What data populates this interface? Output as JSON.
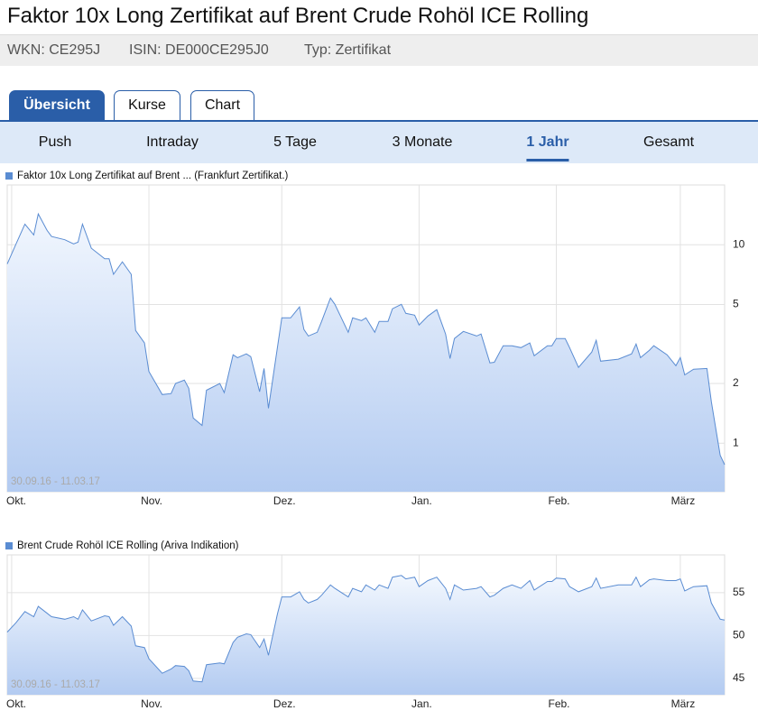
{
  "header": {
    "title": "Faktor 10x Long Zertifikat auf Brent Crude Rohöl ICE Rolling",
    "wkn": "WKN: CE295J",
    "isin": "ISIN: DE000CE295J0",
    "typ": "Typ: Zertifikat"
  },
  "tabs": [
    {
      "label": "Übersicht",
      "active": true
    },
    {
      "label": "Kurse",
      "active": false
    },
    {
      "label": "Chart",
      "active": false
    }
  ],
  "periods": [
    {
      "label": "Push",
      "active": false
    },
    {
      "label": "Intraday",
      "active": false
    },
    {
      "label": "5 Tage",
      "active": false
    },
    {
      "label": "3 Monate",
      "active": false
    },
    {
      "label": "1 Jahr",
      "active": true
    },
    {
      "label": "Gesamt",
      "active": false
    }
  ],
  "chart_data": [
    {
      "type": "line",
      "yscale": "log",
      "grid": true,
      "annotation": "30.09.16 - 11.03.17",
      "x": [
        0,
        2,
        4,
        6,
        7,
        9,
        10,
        13,
        15,
        16,
        17,
        19,
        22,
        23,
        24,
        26,
        28,
        29,
        31,
        32,
        35,
        37,
        38,
        40,
        41,
        42,
        44,
        45,
        48,
        49,
        51,
        52,
        54,
        55,
        57,
        58,
        59,
        61,
        62,
        64,
        66,
        67,
        68,
        70,
        71,
        73,
        74,
        77,
        78,
        80,
        81,
        83,
        84,
        86,
        87,
        89,
        90,
        92,
        93,
        95,
        97,
        99,
        100,
        101,
        103,
        106,
        107,
        109,
        110,
        112,
        114,
        116,
        118,
        119,
        122,
        123,
        124,
        126,
        127,
        129,
        132,
        133,
        134,
        138,
        141,
        142,
        143,
        145,
        146,
        149,
        151,
        152,
        153,
        155,
        158,
        159,
        161,
        162
      ],
      "xlim": [
        0,
        162
      ],
      "xticks": [
        {
          "value": 1,
          "label": "Okt."
        },
        {
          "value": 32,
          "label": "Nov."
        },
        {
          "value": 62,
          "label": "Dez."
        },
        {
          "value": 93,
          "label": "Jan."
        },
        {
          "value": 124,
          "label": "Feb."
        },
        {
          "value": 152,
          "label": "März"
        }
      ],
      "ylim": [
        0.57,
        20
      ],
      "yticks": [
        1,
        2,
        5,
        10
      ],
      "series": [
        {
          "name": "Faktor 10x Long Zertifikat auf Brent ... (Frankfurt Zertifikat.)",
          "color": "#5a8cd2",
          "values": [
            8.0,
            10.1,
            12.7,
            11.2,
            14.3,
            11.8,
            11.0,
            10.6,
            10.1,
            10.3,
            12.7,
            9.6,
            8.5,
            8.5,
            7.1,
            8.2,
            7.1,
            3.7,
            3.2,
            2.3,
            1.76,
            1.78,
            2.0,
            2.08,
            1.89,
            1.34,
            1.23,
            1.85,
            2.0,
            1.8,
            2.79,
            2.7,
            2.82,
            2.73,
            1.82,
            2.38,
            1.5,
            3.03,
            4.28,
            4.28,
            4.86,
            3.74,
            3.47,
            3.62,
            4.11,
            5.39,
            5.01,
            3.62,
            4.28,
            4.15,
            4.28,
            3.62,
            4.11,
            4.11,
            4.76,
            5.01,
            4.51,
            4.42,
            3.94,
            4.37,
            4.71,
            3.55,
            2.67,
            3.37,
            3.66,
            3.47,
            3.55,
            2.54,
            2.56,
            3.1,
            3.1,
            3.03,
            3.2,
            2.76,
            3.1,
            3.1,
            3.37,
            3.37,
            3.03,
            2.41,
            2.88,
            3.3,
            2.59,
            2.65,
            2.82,
            3.16,
            2.7,
            2.94,
            3.1,
            2.79,
            2.46,
            2.7,
            2.21,
            2.36,
            2.38,
            1.62,
            0.87,
            0.78
          ]
        }
      ]
    },
    {
      "type": "line",
      "yscale": "linear",
      "grid": true,
      "annotation": "30.09.16 - 11.03.17",
      "x": [
        0,
        2,
        4,
        6,
        7,
        9,
        10,
        13,
        15,
        16,
        17,
        19,
        22,
        23,
        24,
        26,
        28,
        29,
        31,
        32,
        35,
        37,
        38,
        40,
        41,
        42,
        44,
        45,
        48,
        49,
        51,
        52,
        54,
        55,
        57,
        58,
        59,
        61,
        62,
        64,
        66,
        67,
        68,
        70,
        71,
        73,
        74,
        77,
        78,
        80,
        81,
        83,
        84,
        86,
        87,
        89,
        90,
        92,
        93,
        95,
        97,
        99,
        100,
        101,
        103,
        106,
        107,
        109,
        110,
        112,
        114,
        116,
        118,
        119,
        122,
        123,
        124,
        126,
        127,
        129,
        132,
        133,
        134,
        138,
        141,
        142,
        143,
        145,
        146,
        149,
        151,
        152,
        153,
        155,
        158,
        159,
        161,
        162
      ],
      "xlim": [
        0,
        162
      ],
      "xticks": [
        {
          "value": 1,
          "label": "Okt."
        },
        {
          "value": 32,
          "label": "Nov."
        },
        {
          "value": 62,
          "label": "Dez."
        },
        {
          "value": 93,
          "label": "Jan."
        },
        {
          "value": 124,
          "label": "Feb."
        },
        {
          "value": 152,
          "label": "März"
        }
      ],
      "ylim": [
        43.1,
        59.4
      ],
      "yticks": [
        45,
        50,
        55
      ],
      "series": [
        {
          "name": "Brent Crude Rohöl ICE Rolling (Ariva Indikation)",
          "color": "#5a8cd2",
          "values": [
            50.4,
            51.5,
            52.8,
            52.2,
            53.4,
            52.6,
            52.2,
            51.9,
            52.2,
            51.9,
            53.0,
            51.7,
            52.3,
            52.2,
            51.2,
            52.2,
            51.1,
            48.8,
            48.6,
            47.3,
            45.6,
            46.1,
            46.5,
            46.4,
            45.9,
            44.7,
            44.6,
            46.6,
            46.8,
            46.7,
            49.2,
            49.8,
            50.2,
            50.1,
            48.6,
            49.6,
            47.7,
            52.5,
            54.5,
            54.5,
            55.1,
            54.2,
            53.8,
            54.2,
            54.7,
            55.9,
            55.5,
            54.5,
            55.5,
            55.1,
            55.9,
            55.3,
            55.9,
            55.5,
            56.8,
            57.0,
            56.6,
            56.8,
            55.7,
            56.4,
            56.8,
            55.5,
            54.2,
            55.9,
            55.3,
            55.5,
            55.7,
            54.5,
            54.7,
            55.5,
            55.9,
            55.5,
            56.4,
            55.3,
            56.3,
            56.3,
            56.7,
            56.6,
            55.7,
            55.1,
            55.7,
            56.7,
            55.5,
            55.9,
            55.9,
            56.8,
            55.7,
            56.5,
            56.6,
            56.4,
            56.4,
            56.6,
            55.2,
            55.7,
            55.8,
            53.8,
            51.9,
            51.8
          ]
        }
      ]
    }
  ]
}
